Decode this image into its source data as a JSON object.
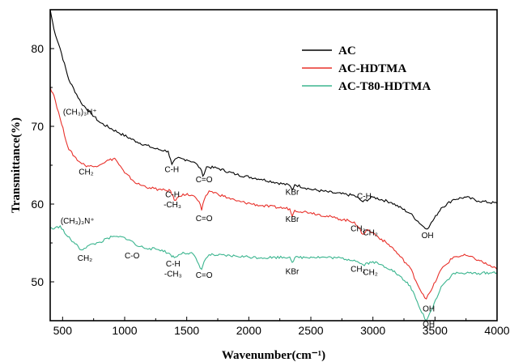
{
  "chart_data": {
    "type": "line",
    "xlabel": "Wavenumber(cm⁻¹)",
    "ylabel": "Transmittance(%)",
    "xlim": [
      400,
      4000
    ],
    "ylim": [
      45,
      85
    ],
    "xticks": [
      500,
      1000,
      1500,
      2000,
      2500,
      3000,
      3500,
      4000
    ],
    "yticks": [
      50,
      60,
      70,
      80
    ],
    "grid": false,
    "legend_position": "top-right",
    "series": [
      {
        "name": "AC",
        "color": "#000000",
        "x": [
          400,
          430,
          480,
          550,
          650,
          800,
          950,
          1100,
          1250,
          1350,
          1380,
          1420,
          1500,
          1560,
          1610,
          1630,
          1660,
          1750,
          1900,
          2100,
          2330,
          2350,
          2370,
          2500,
          2700,
          2850,
          2920,
          3000,
          3150,
          3300,
          3400,
          3430,
          3460,
          3550,
          3650,
          3750,
          3850,
          4000
        ],
        "y": [
          85,
          82.5,
          80,
          76,
          73,
          70.5,
          69.2,
          68,
          67.1,
          66.8,
          65.1,
          65.9,
          65.7,
          65.4,
          64.6,
          63.6,
          64.8,
          64.6,
          63.8,
          63.2,
          62.4,
          61.8,
          62.5,
          61.9,
          61.4,
          61.1,
          60.3,
          60.9,
          60.2,
          58.8,
          57.2,
          56.8,
          57.3,
          59.5,
          60.6,
          60.9,
          60.4,
          60.1
        ]
      },
      {
        "name": "AC-HDTMA",
        "color": "#e8302a",
        "x": [
          400,
          430,
          480,
          550,
          630,
          680,
          750,
          850,
          920,
          1000,
          1100,
          1200,
          1300,
          1370,
          1400,
          1470,
          1550,
          1600,
          1620,
          1640,
          1680,
          1750,
          1900,
          2100,
          2330,
          2350,
          2370,
          2500,
          2700,
          2850,
          2920,
          2950,
          3000,
          3150,
          3300,
          3380,
          3430,
          3470,
          3550,
          3650,
          3750,
          3850,
          4000
        ],
        "y": [
          75,
          74,
          71,
          67,
          65.5,
          65,
          64.8,
          65.5,
          65.9,
          64,
          62.6,
          62.1,
          61.8,
          61.7,
          60.5,
          61.3,
          61.1,
          60.3,
          59.2,
          60.5,
          61.7,
          61.3,
          60.4,
          59.8,
          59.4,
          58.4,
          59.2,
          58.9,
          58.2,
          57.7,
          56.1,
          56.7,
          56.3,
          54.5,
          51.8,
          49,
          47.8,
          48.9,
          51.6,
          53.2,
          53.4,
          52.8,
          51.6
        ]
      },
      {
        "name": "AC-T80-HDTMA",
        "color": "#3bb58f",
        "x": [
          400,
          430,
          480,
          530,
          600,
          650,
          700,
          800,
          900,
          1000,
          1050,
          1100,
          1200,
          1300,
          1370,
          1400,
          1470,
          1550,
          1620,
          1640,
          1680,
          1750,
          1900,
          2100,
          2330,
          2350,
          2370,
          2500,
          2700,
          2850,
          2920,
          3000,
          3150,
          3300,
          3380,
          3430,
          3470,
          3550,
          3650,
          3750,
          3850,
          4000
        ],
        "y": [
          57,
          56.8,
          57.2,
          56,
          54.9,
          54.1,
          54.6,
          55.1,
          55.8,
          55.7,
          55.3,
          54.6,
          54.3,
          54.1,
          53.5,
          53.1,
          53.8,
          53.6,
          51.6,
          52.6,
          53.5,
          53.4,
          53.3,
          53.1,
          53.2,
          52.5,
          53.1,
          53.2,
          53.1,
          52.8,
          52.2,
          52.6,
          51.6,
          49.5,
          46.5,
          45,
          46.3,
          49.4,
          51.1,
          51.1,
          51.1,
          51.2
        ]
      }
    ],
    "annotations": [
      {
        "text": "(CH₃)₃N⁺",
        "x": 640,
        "y": 71.5
      },
      {
        "text": "CH₂",
        "x": 690,
        "y": 63.8
      },
      {
        "text": "C-H",
        "x": 1380,
        "y": 64.1
      },
      {
        "text": "C=O",
        "x": 1640,
        "y": 62.8
      },
      {
        "text": "C-H",
        "x": 1385,
        "y": 60.9
      },
      {
        "text": "-CH₃",
        "x": 1385,
        "y": 59.6
      },
      {
        "text": "C=O",
        "x": 1640,
        "y": 57.8
      },
      {
        "text": "KBr",
        "x": 2350,
        "y": 61.2
      },
      {
        "text": "KBr",
        "x": 2350,
        "y": 57.7
      },
      {
        "text": "C-H",
        "x": 2930,
        "y": 60.7
      },
      {
        "text": "CH₂",
        "x": 2880,
        "y": 56.5
      },
      {
        "text": "CH₂",
        "x": 2980,
        "y": 56.0
      },
      {
        "text": "OH",
        "x": 3440,
        "y": 55.6
      },
      {
        "text": "(CH₃)₃N⁺",
        "x": 620,
        "y": 57.5
      },
      {
        "text": "CH₂",
        "x": 680,
        "y": 52.7
      },
      {
        "text": "C-O",
        "x": 1060,
        "y": 53.0
      },
      {
        "text": "C-H",
        "x": 1390,
        "y": 52.0
      },
      {
        "text": "-CH₃",
        "x": 1390,
        "y": 50.7
      },
      {
        "text": "C=O",
        "x": 1640,
        "y": 50.5
      },
      {
        "text": "KBr",
        "x": 2350,
        "y": 51.0
      },
      {
        "text": "CH₂",
        "x": 2880,
        "y": 51.3
      },
      {
        "text": "CH₂",
        "x": 2980,
        "y": 50.9
      },
      {
        "text": "OH",
        "x": 3450,
        "y": 46.2
      },
      {
        "text": "OH",
        "x": 3450,
        "y": 44.2
      }
    ]
  }
}
